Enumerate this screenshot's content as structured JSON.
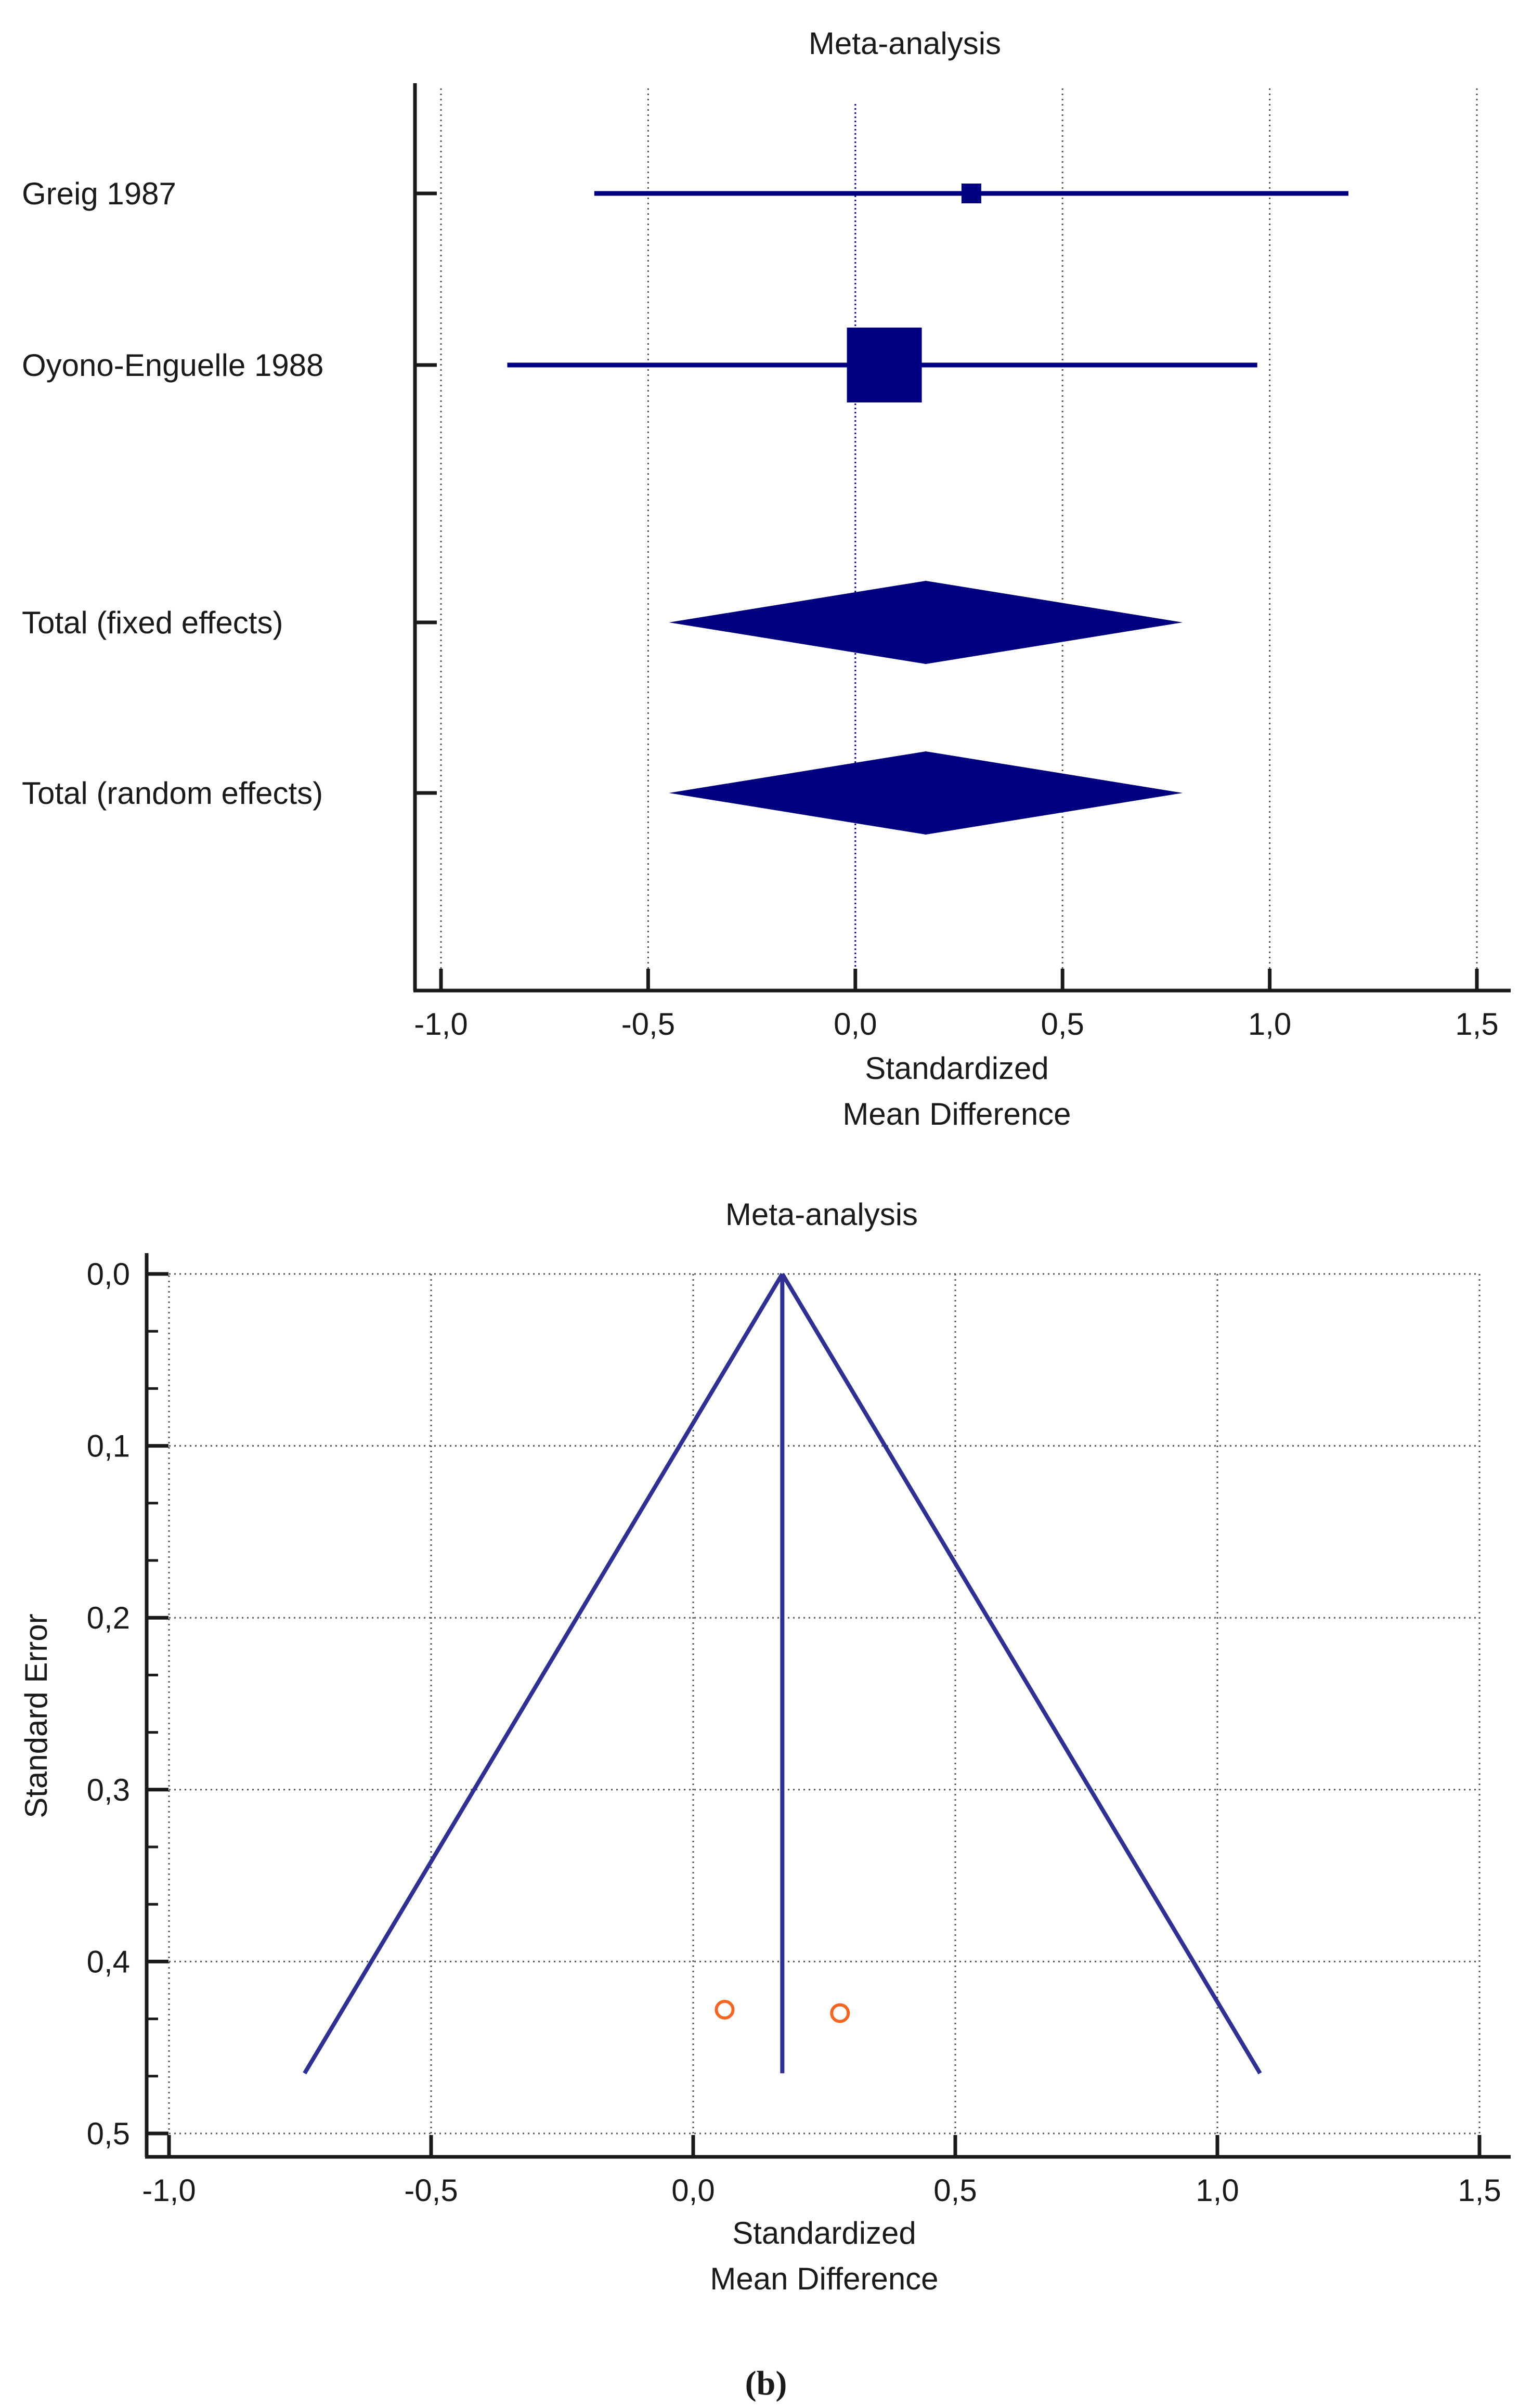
{
  "colors": {
    "series": "#000080",
    "funnel": "#2e3192",
    "point": "#f26522",
    "axis": "#1a1a1a",
    "grid": "#555555"
  },
  "chart_data": [
    {
      "type": "forest",
      "title": "Meta-analysis",
      "xlabel_lines": [
        "Standardized",
        "Mean Difference"
      ],
      "xlim": [
        -1.0,
        1.5
      ],
      "x_ticks": [
        -1.0,
        -0.5,
        0.0,
        0.5,
        1.0,
        1.5
      ],
      "x_tick_labels": [
        "-1,0",
        "-0,5",
        "0,0",
        "0,5",
        "1,0",
        "1,5"
      ],
      "null_line": 0.0,
      "studies": [
        {
          "label": "Greig 1987",
          "estimate": 0.28,
          "lower": -0.63,
          "upper": 1.19,
          "weight": "small"
        },
        {
          "label": "Oyono-Enguelle 1988",
          "estimate": 0.07,
          "lower": -0.84,
          "upper": 0.97,
          "weight": "large"
        }
      ],
      "pooled": [
        {
          "label": "Total (fixed effects)",
          "estimate": 0.17,
          "lower": -0.45,
          "upper": 0.79
        },
        {
          "label": "Total (random effects)",
          "estimate": 0.17,
          "lower": -0.45,
          "upper": 0.79
        }
      ]
    },
    {
      "type": "scatter",
      "subtype": "funnel",
      "title": "Meta-analysis",
      "xlabel_lines": [
        "Standardized",
        "Mean Difference"
      ],
      "ylabel": "Standard Error",
      "xlim": [
        -1.0,
        1.5
      ],
      "ylim": [
        0.0,
        0.5
      ],
      "y_inverted": true,
      "x_ticks": [
        -1.0,
        -0.5,
        0.0,
        0.5,
        1.0,
        1.5
      ],
      "x_tick_labels": [
        "-1,0",
        "-0,5",
        "0,0",
        "0,5",
        "1,0",
        "1,5"
      ],
      "y_ticks": [
        0.0,
        0.1,
        0.2,
        0.3,
        0.4,
        0.5
      ],
      "y_tick_labels": [
        "0,0",
        "0,1",
        "0,2",
        "0,3",
        "0,4",
        "0,5"
      ],
      "pooled_estimate": 0.17,
      "funnel_max_se": 0.465,
      "points": [
        {
          "x": 0.06,
          "y": 0.428
        },
        {
          "x": 0.28,
          "y": 0.43
        }
      ]
    }
  ],
  "panel_b_caption": "(b)"
}
